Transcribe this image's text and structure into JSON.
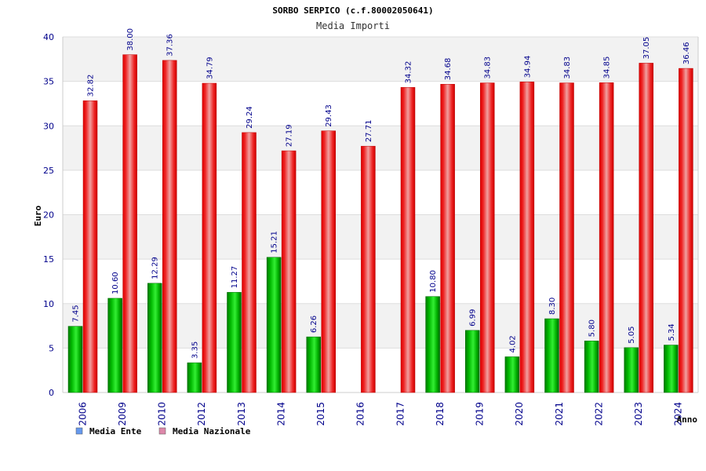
{
  "chart_data": {
    "type": "bar",
    "title": "SORBO SERPICO (c.f.80002050641)",
    "subtitle": "Media Importi",
    "xlabel": "Anno",
    "ylabel": "Euro",
    "ylim": [
      0,
      40
    ],
    "yticks": [
      0,
      5,
      10,
      15,
      20,
      25,
      30,
      35,
      40
    ],
    "grid": true,
    "legend_position": "bottom-left",
    "categories": [
      "2006",
      "2009",
      "2010",
      "2012",
      "2013",
      "2014",
      "2015",
      "2016",
      "2017",
      "2018",
      "2019",
      "2020",
      "2021",
      "2022",
      "2023",
      "2024"
    ],
    "series": [
      {
        "name": "Media Ente",
        "color": "#00aa00",
        "legend_color": "#6699ee",
        "values": [
          7.45,
          10.6,
          12.29,
          3.35,
          11.27,
          15.21,
          6.26,
          null,
          null,
          10.8,
          6.99,
          4.02,
          8.3,
          5.8,
          5.05,
          5.34
        ],
        "labels": [
          "7.45",
          "10.60",
          "12.29",
          "3.35",
          "11.27",
          "15.21",
          "6.26",
          "",
          "",
          "10.80",
          "6.99",
          "4.02",
          "8.30",
          "5.80",
          "5.05",
          "5.34"
        ]
      },
      {
        "name": "Media Nazionale",
        "color": "#ee0000",
        "legend_color": "#dd88aa",
        "values": [
          32.82,
          38.0,
          37.36,
          34.79,
          29.24,
          27.19,
          29.43,
          27.71,
          34.32,
          34.68,
          34.83,
          34.94,
          34.83,
          34.85,
          37.05,
          36.46
        ],
        "labels": [
          "32.82",
          "38.00",
          "37.36",
          "34.79",
          "29.24",
          "27.19",
          "29.43",
          "27.71",
          "34.32",
          "34.68",
          "34.83",
          "34.94",
          "34.83",
          "34.85",
          "37.05",
          "36.46"
        ]
      }
    ]
  }
}
